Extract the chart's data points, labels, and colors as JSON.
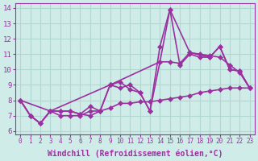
{
  "series": [
    {
      "x": [
        0,
        1,
        2,
        3,
        4,
        5,
        6,
        7,
        8,
        9,
        10,
        11,
        12,
        13,
        14,
        15,
        16,
        17,
        18,
        19,
        20,
        21,
        22,
        23
      ],
      "y": [
        8.0,
        7.0,
        6.5,
        7.3,
        7.0,
        7.0,
        7.0,
        7.3,
        7.3,
        9.0,
        8.8,
        9.0,
        8.5,
        7.3,
        11.5,
        13.9,
        10.3,
        11.0,
        10.8,
        10.8,
        11.5,
        10.0,
        9.9,
        8.8
      ],
      "color": "#9b30a0",
      "linewidth": 1.2,
      "marker": "D",
      "markersize": 3
    },
    {
      "x": [
        0,
        1,
        2,
        3,
        4,
        5,
        6,
        7,
        8,
        9,
        10,
        11,
        12,
        13,
        14,
        15,
        16,
        17,
        18,
        19,
        20,
        21,
        22,
        23
      ],
      "y": [
        8.0,
        7.0,
        6.5,
        7.3,
        7.3,
        7.3,
        7.1,
        7.6,
        7.3,
        7.5,
        7.8,
        7.8,
        7.9,
        7.9,
        8.0,
        8.1,
        8.2,
        8.3,
        8.5,
        8.6,
        8.7,
        8.8,
        8.8,
        8.8
      ],
      "color": "#9b30a0",
      "linewidth": 1.2,
      "marker": "D",
      "markersize": 3
    },
    {
      "x": [
        0,
        1,
        2,
        3,
        4,
        5,
        6,
        7,
        8,
        9,
        10,
        11,
        12,
        13,
        14,
        15,
        16,
        17,
        18,
        19,
        20,
        21,
        22,
        23
      ],
      "y": [
        8.0,
        7.0,
        6.5,
        7.3,
        7.3,
        7.3,
        7.1,
        7.0,
        7.3,
        9.0,
        9.2,
        8.7,
        8.5,
        7.3,
        10.5,
        10.5,
        10.4,
        11.1,
        11.0,
        10.9,
        10.8,
        10.3,
        9.8,
        8.8
      ],
      "color": "#9b30a0",
      "linewidth": 1.2,
      "marker": "D",
      "markersize": 3
    },
    {
      "x": [
        0,
        3,
        9,
        14,
        15,
        17,
        19,
        20,
        21,
        22,
        23
      ],
      "y": [
        8.0,
        7.3,
        9.0,
        10.5,
        13.9,
        11.1,
        10.8,
        11.5,
        10.0,
        9.9,
        8.8
      ],
      "color": "#9b30a0",
      "linewidth": 1.2,
      "marker": "D",
      "markersize": 3
    }
  ],
  "bg_color": "#d0ece8",
  "grid_color": "#b0d8d0",
  "line_color": "#9b30a0",
  "xlabel": "Windchill (Refroidissement éolien,°C)",
  "xlabel_fontsize": 7,
  "yticks": [
    6,
    7,
    8,
    9,
    10,
    11,
    12,
    13,
    14
  ],
  "xticks": [
    0,
    1,
    2,
    3,
    4,
    5,
    6,
    7,
    8,
    9,
    10,
    11,
    12,
    13,
    14,
    15,
    16,
    17,
    18,
    19,
    20,
    21,
    22,
    23
  ],
  "ylim": [
    5.8,
    14.3
  ],
  "xlim": [
    -0.5,
    23.5
  ]
}
